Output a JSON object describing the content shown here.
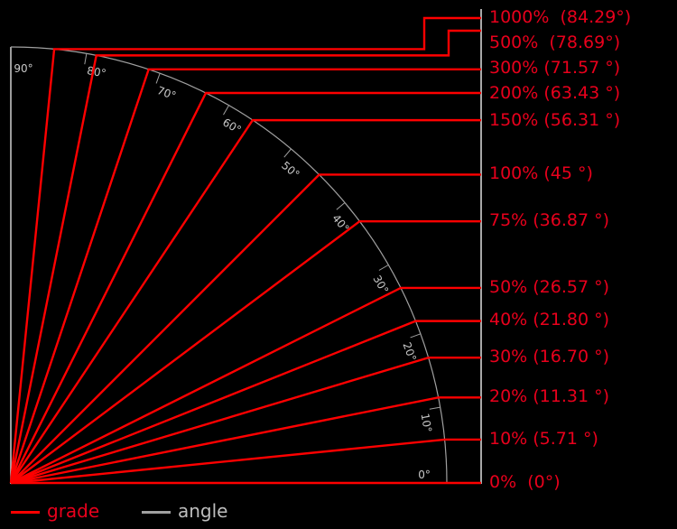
{
  "chart_data": {
    "type": "diagram",
    "title": "",
    "description": "Quarter-circle protractor showing road grade percentages vs. angle in degrees",
    "origin": [
      12,
      535
    ],
    "radius": 483,
    "angle_ticks": [
      "0°",
      "10°",
      "20°",
      "30°",
      "40°",
      "50°",
      "60°",
      "70°",
      "80°",
      "90°"
    ],
    "grades": [
      {
        "grade": "1000%",
        "angle_deg": 84.29,
        "label": "1000%  (84.29°)"
      },
      {
        "grade": "500%",
        "angle_deg": 78.69,
        "label": "500%  (78.69°)"
      },
      {
        "grade": "300%",
        "angle_deg": 71.57,
        "label": "300% (71.57 °)"
      },
      {
        "grade": "200%",
        "angle_deg": 63.43,
        "label": "200% (63.43 °)"
      },
      {
        "grade": "150%",
        "angle_deg": 56.31,
        "label": "150% (56.31 °)"
      },
      {
        "grade": "100%",
        "angle_deg": 45,
        "label": "100% (45 °)"
      },
      {
        "grade": "75%",
        "angle_deg": 36.87,
        "label": "75% (36.87 °)"
      },
      {
        "grade": "50%",
        "angle_deg": 26.57,
        "label": "50% (26.57 °)"
      },
      {
        "grade": "40%",
        "angle_deg": 21.8,
        "label": "40% (21.80 °)"
      },
      {
        "grade": "30%",
        "angle_deg": 16.7,
        "label": "30% (16.70 °)"
      },
      {
        "grade": "20%",
        "angle_deg": 11.31,
        "label": "20% (11.31 °)"
      },
      {
        "grade": "10%",
        "angle_deg": 5.71,
        "label": "10% (5.71 °)"
      },
      {
        "grade": "0%",
        "angle_deg": 0,
        "label": "0%  (0°)"
      }
    ],
    "legend": [
      {
        "name": "grade",
        "color": "#ff0000"
      },
      {
        "name": "angle",
        "color": "#a0a0a0"
      }
    ]
  },
  "colors": {
    "background": "#000000",
    "grade": "#ff0000",
    "grade_text": "#e8001c",
    "angle": "#a0a0a0"
  },
  "label_tops": [
    8,
    36,
    64,
    92,
    122,
    181,
    233,
    307,
    343,
    384,
    428,
    475,
    523
  ],
  "legend": {
    "grade": "grade",
    "angle": "angle"
  }
}
